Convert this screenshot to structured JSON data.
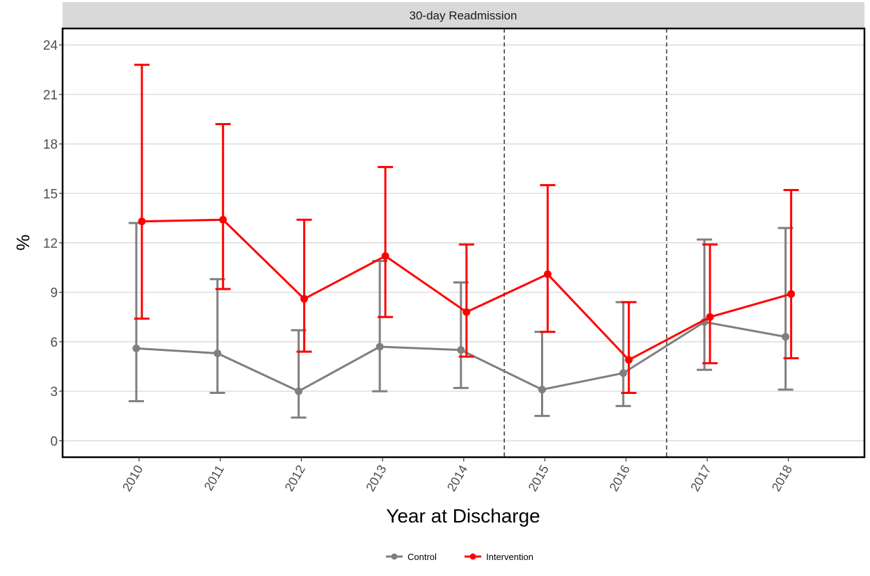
{
  "chart_data": {
    "type": "line",
    "facet_title": "30-day Readmission",
    "xlabel": "Year at Discharge",
    "ylabel": "%",
    "categories": [
      "2010",
      "2011",
      "2012",
      "2013",
      "2014",
      "2015",
      "2016",
      "2017",
      "2018"
    ],
    "ylim": [
      -1,
      25
    ],
    "yticks": [
      "0",
      "3",
      "6",
      "9",
      "12",
      "15",
      "18",
      "21",
      "24"
    ],
    "grid": "horizontal",
    "legend_position": "bottom",
    "vertical_reference_lines": [
      4.5,
      6.5
    ],
    "series": [
      {
        "name": "Control",
        "color": "#7f7f7f",
        "values": [
          5.6,
          5.3,
          3.0,
          5.7,
          5.5,
          3.1,
          4.1,
          7.2,
          6.3
        ],
        "lower": [
          2.4,
          2.9,
          1.4,
          3.0,
          3.2,
          1.5,
          2.1,
          4.3,
          3.1
        ],
        "upper": [
          13.2,
          9.8,
          6.7,
          10.9,
          9.6,
          6.6,
          8.4,
          12.2,
          12.9
        ]
      },
      {
        "name": "Intervention",
        "color": "#ff0000",
        "values": [
          13.3,
          13.4,
          8.6,
          11.2,
          7.8,
          10.1,
          4.9,
          7.5,
          8.9
        ],
        "lower": [
          7.4,
          9.2,
          5.4,
          7.5,
          5.1,
          6.6,
          2.9,
          4.7,
          5.0
        ],
        "upper": [
          22.8,
          19.2,
          13.4,
          16.6,
          11.9,
          15.5,
          8.4,
          11.9,
          15.2
        ]
      }
    ]
  }
}
